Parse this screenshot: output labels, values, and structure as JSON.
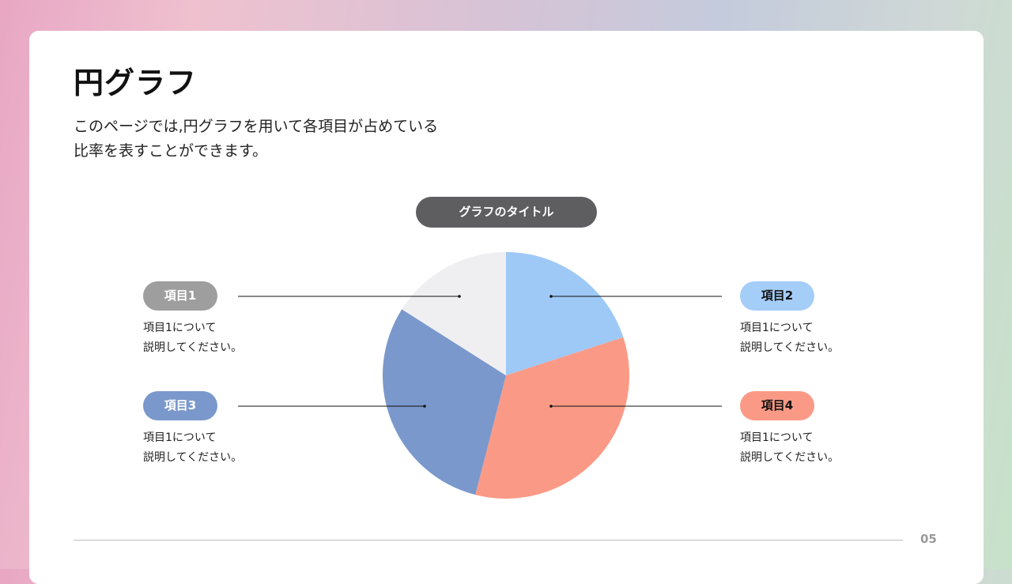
{
  "slide": {
    "title": "円グラフ",
    "description_lines": [
      "このページでは,円グラフを用いて各項目が占めている",
      "比率を表すことができます。"
    ],
    "page_number": "05"
  },
  "chart_data": {
    "type": "pie",
    "title": "グラフのタイトル",
    "categories": [
      "項目1",
      "項目2",
      "項目4",
      "項目3"
    ],
    "values": [
      16,
      20,
      34,
      30
    ],
    "colors": [
      "#efeff1",
      "#9ec9f7",
      "#fa9a86",
      "#7a98cc"
    ]
  },
  "items": [
    {
      "label": "項目1",
      "color": "#9e9e9e",
      "text_color": "#ffffff",
      "desc": [
        "項目1について",
        "説明してください。"
      ]
    },
    {
      "label": "項目2",
      "color": "#a4cdf8",
      "text_color": "#111111",
      "desc": [
        "項目1について",
        "説明してください。"
      ]
    },
    {
      "label": "項目3",
      "color": "#7a98cc",
      "text_color": "#ffffff",
      "desc": [
        "項目1について",
        "説明してください。"
      ]
    },
    {
      "label": "項目4",
      "color": "#fa9a86",
      "text_color": "#111111",
      "desc": [
        "項目1について",
        "説明してください。"
      ]
    }
  ]
}
